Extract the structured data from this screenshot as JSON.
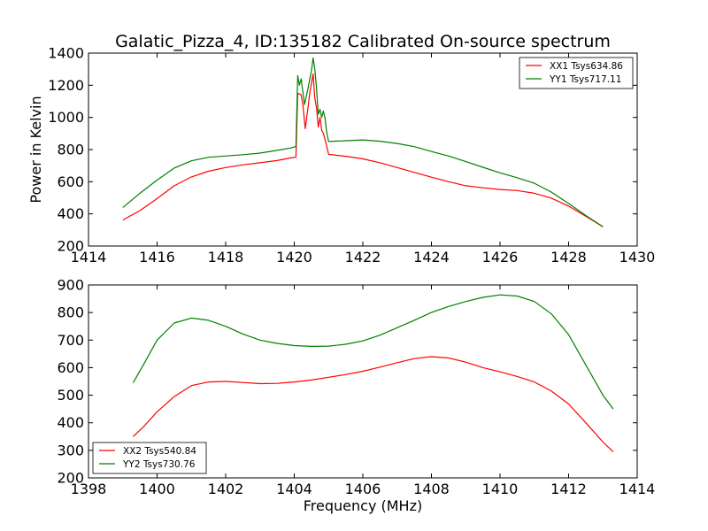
{
  "chart_data": [
    {
      "type": "line",
      "title": "Galatic_Pizza_4, ID:135182 Calibrated On-source spectrum",
      "xlabel": "",
      "ylabel": "Power in Kelvin",
      "xlim": [
        1414,
        1430
      ],
      "ylim": [
        200,
        1400
      ],
      "x_ticks": [
        1414,
        1416,
        1418,
        1420,
        1422,
        1424,
        1426,
        1428,
        1430
      ],
      "y_ticks": [
        200,
        400,
        600,
        800,
        1000,
        1200,
        1400
      ],
      "legend_position": "top-right",
      "series": [
        {
          "name": "XX1 Tsys634.86",
          "color": "#ff0000",
          "points": [
            [
              1415.0,
              362
            ],
            [
              1415.5,
              420
            ],
            [
              1416.0,
              495
            ],
            [
              1416.5,
              575
            ],
            [
              1417.0,
              630
            ],
            [
              1417.5,
              665
            ],
            [
              1418.0,
              688
            ],
            [
              1418.5,
              705
            ],
            [
              1419.0,
              718
            ],
            [
              1419.5,
              732
            ],
            [
              1419.9,
              748
            ],
            [
              1420.05,
              752
            ],
            [
              1420.1,
              1150
            ],
            [
              1420.2,
              1140
            ],
            [
              1420.25,
              1080
            ],
            [
              1420.32,
              930
            ],
            [
              1420.4,
              1060
            ],
            [
              1420.45,
              1150
            ],
            [
              1420.5,
              1210
            ],
            [
              1420.55,
              1270
            ],
            [
              1420.6,
              1120
            ],
            [
              1420.65,
              1060
            ],
            [
              1420.7,
              940
            ],
            [
              1420.75,
              1000
            ],
            [
              1420.8,
              920
            ],
            [
              1420.85,
              900
            ],
            [
              1420.9,
              860
            ],
            [
              1421.0,
              770
            ],
            [
              1421.5,
              758
            ],
            [
              1422.0,
              742
            ],
            [
              1422.5,
              718
            ],
            [
              1423.0,
              688
            ],
            [
              1423.5,
              658
            ],
            [
              1424.0,
              628
            ],
            [
              1424.5,
              600
            ],
            [
              1425.0,
              575
            ],
            [
              1425.5,
              562
            ],
            [
              1426.0,
              552
            ],
            [
              1426.5,
              545
            ],
            [
              1427.0,
              528
            ],
            [
              1427.5,
              498
            ],
            [
              1428.0,
              448
            ],
            [
              1428.5,
              385
            ],
            [
              1429.0,
              320
            ]
          ]
        },
        {
          "name": "YY1 Tsys717.11",
          "color": "#008000",
          "points": [
            [
              1415.0,
              440
            ],
            [
              1415.5,
              528
            ],
            [
              1416.0,
              610
            ],
            [
              1416.5,
              685
            ],
            [
              1417.0,
              730
            ],
            [
              1417.5,
              752
            ],
            [
              1418.0,
              760
            ],
            [
              1418.5,
              768
            ],
            [
              1419.0,
              778
            ],
            [
              1419.5,
              795
            ],
            [
              1419.9,
              810
            ],
            [
              1420.05,
              820
            ],
            [
              1420.1,
              1260
            ],
            [
              1420.15,
              1200
            ],
            [
              1420.2,
              1240
            ],
            [
              1420.3,
              1080
            ],
            [
              1420.4,
              1180
            ],
            [
              1420.5,
              1290
            ],
            [
              1420.55,
              1370
            ],
            [
              1420.6,
              1300
            ],
            [
              1420.65,
              1180
            ],
            [
              1420.7,
              1020
            ],
            [
              1420.75,
              1050
            ],
            [
              1420.8,
              1000
            ],
            [
              1420.85,
              1040
            ],
            [
              1420.9,
              990
            ],
            [
              1420.95,
              900
            ],
            [
              1421.0,
              850
            ],
            [
              1421.5,
              855
            ],
            [
              1422.0,
              860
            ],
            [
              1422.5,
              852
            ],
            [
              1423.0,
              838
            ],
            [
              1423.5,
              818
            ],
            [
              1424.0,
              788
            ],
            [
              1424.5,
              760
            ],
            [
              1425.0,
              725
            ],
            [
              1425.5,
              690
            ],
            [
              1426.0,
              655
            ],
            [
              1426.5,
              625
            ],
            [
              1427.0,
              590
            ],
            [
              1427.5,
              535
            ],
            [
              1428.0,
              465
            ],
            [
              1428.5,
              390
            ],
            [
              1429.0,
              320
            ]
          ]
        }
      ]
    },
    {
      "type": "line",
      "title": "",
      "xlabel": "Frequency (MHz)",
      "ylabel": "",
      "xlim": [
        1398,
        1414
      ],
      "ylim": [
        200,
        900
      ],
      "x_ticks": [
        1398,
        1400,
        1402,
        1404,
        1406,
        1408,
        1410,
        1412,
        1414
      ],
      "y_ticks": [
        200,
        300,
        400,
        500,
        600,
        700,
        800,
        900
      ],
      "legend_position": "bottom-left",
      "series": [
        {
          "name": "XX2 Tsys540.84",
          "color": "#ff0000",
          "points": [
            [
              1399.3,
              350
            ],
            [
              1399.6,
              385
            ],
            [
              1400.0,
              440
            ],
            [
              1400.5,
              495
            ],
            [
              1401.0,
              535
            ],
            [
              1401.5,
              548
            ],
            [
              1402.0,
              550
            ],
            [
              1402.5,
              546
            ],
            [
              1403.0,
              542
            ],
            [
              1403.5,
              543
            ],
            [
              1404.0,
              548
            ],
            [
              1404.5,
              555
            ],
            [
              1405.0,
              565
            ],
            [
              1405.5,
              575
            ],
            [
              1406.0,
              587
            ],
            [
              1406.5,
              602
            ],
            [
              1407.0,
              618
            ],
            [
              1407.5,
              633
            ],
            [
              1408.0,
              640
            ],
            [
              1408.5,
              635
            ],
            [
              1409.0,
              620
            ],
            [
              1409.5,
              600
            ],
            [
              1410.0,
              585
            ],
            [
              1410.5,
              568
            ],
            [
              1411.0,
              548
            ],
            [
              1411.5,
              515
            ],
            [
              1412.0,
              468
            ],
            [
              1412.5,
              400
            ],
            [
              1413.0,
              330
            ],
            [
              1413.3,
              295
            ]
          ]
        },
        {
          "name": "YY2 Tsys730.76",
          "color": "#008000",
          "points": [
            [
              1399.3,
              545
            ],
            [
              1399.6,
              610
            ],
            [
              1400.0,
              700
            ],
            [
              1400.5,
              762
            ],
            [
              1401.0,
              780
            ],
            [
              1401.5,
              772
            ],
            [
              1402.0,
              750
            ],
            [
              1402.5,
              722
            ],
            [
              1403.0,
              700
            ],
            [
              1403.5,
              688
            ],
            [
              1404.0,
              680
            ],
            [
              1404.5,
              677
            ],
            [
              1405.0,
              678
            ],
            [
              1405.5,
              685
            ],
            [
              1406.0,
              697
            ],
            [
              1406.5,
              718
            ],
            [
              1407.0,
              745
            ],
            [
              1407.5,
              772
            ],
            [
              1408.0,
              800
            ],
            [
              1408.5,
              822
            ],
            [
              1409.0,
              840
            ],
            [
              1409.5,
              855
            ],
            [
              1410.0,
              864
            ],
            [
              1410.5,
              860
            ],
            [
              1411.0,
              840
            ],
            [
              1411.5,
              795
            ],
            [
              1412.0,
              720
            ],
            [
              1412.5,
              610
            ],
            [
              1413.0,
              500
            ],
            [
              1413.3,
              450
            ]
          ]
        }
      ]
    }
  ]
}
